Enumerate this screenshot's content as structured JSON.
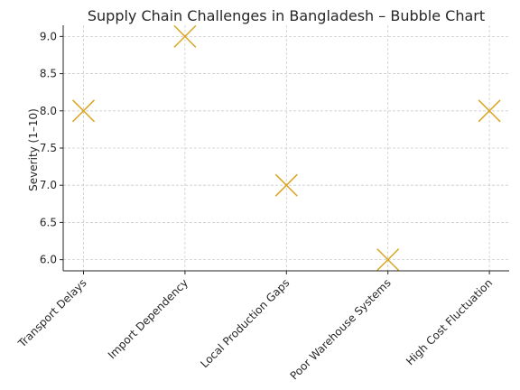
{
  "chart_data": {
    "type": "scatter",
    "title": "Supply Chain Challenges in Bangladesh – Bubble Chart",
    "xlabel": "",
    "ylabel": "Severity (1–10)",
    "categories": [
      "Transport Delays",
      "Import Dependency",
      "Local Production Gaps",
      "Poor Warehouse Systems",
      "High Cost Fluctuation"
    ],
    "values": [
      8.0,
      9.0,
      7.0,
      6.0,
      8.0
    ],
    "marker": "x",
    "marker_color": "#daa520",
    "ylim": [
      5.85,
      9.15
    ],
    "yticks": [
      "6.0",
      "6.5",
      "7.0",
      "7.5",
      "8.0",
      "8.5",
      "9.0"
    ],
    "grid": true
  }
}
